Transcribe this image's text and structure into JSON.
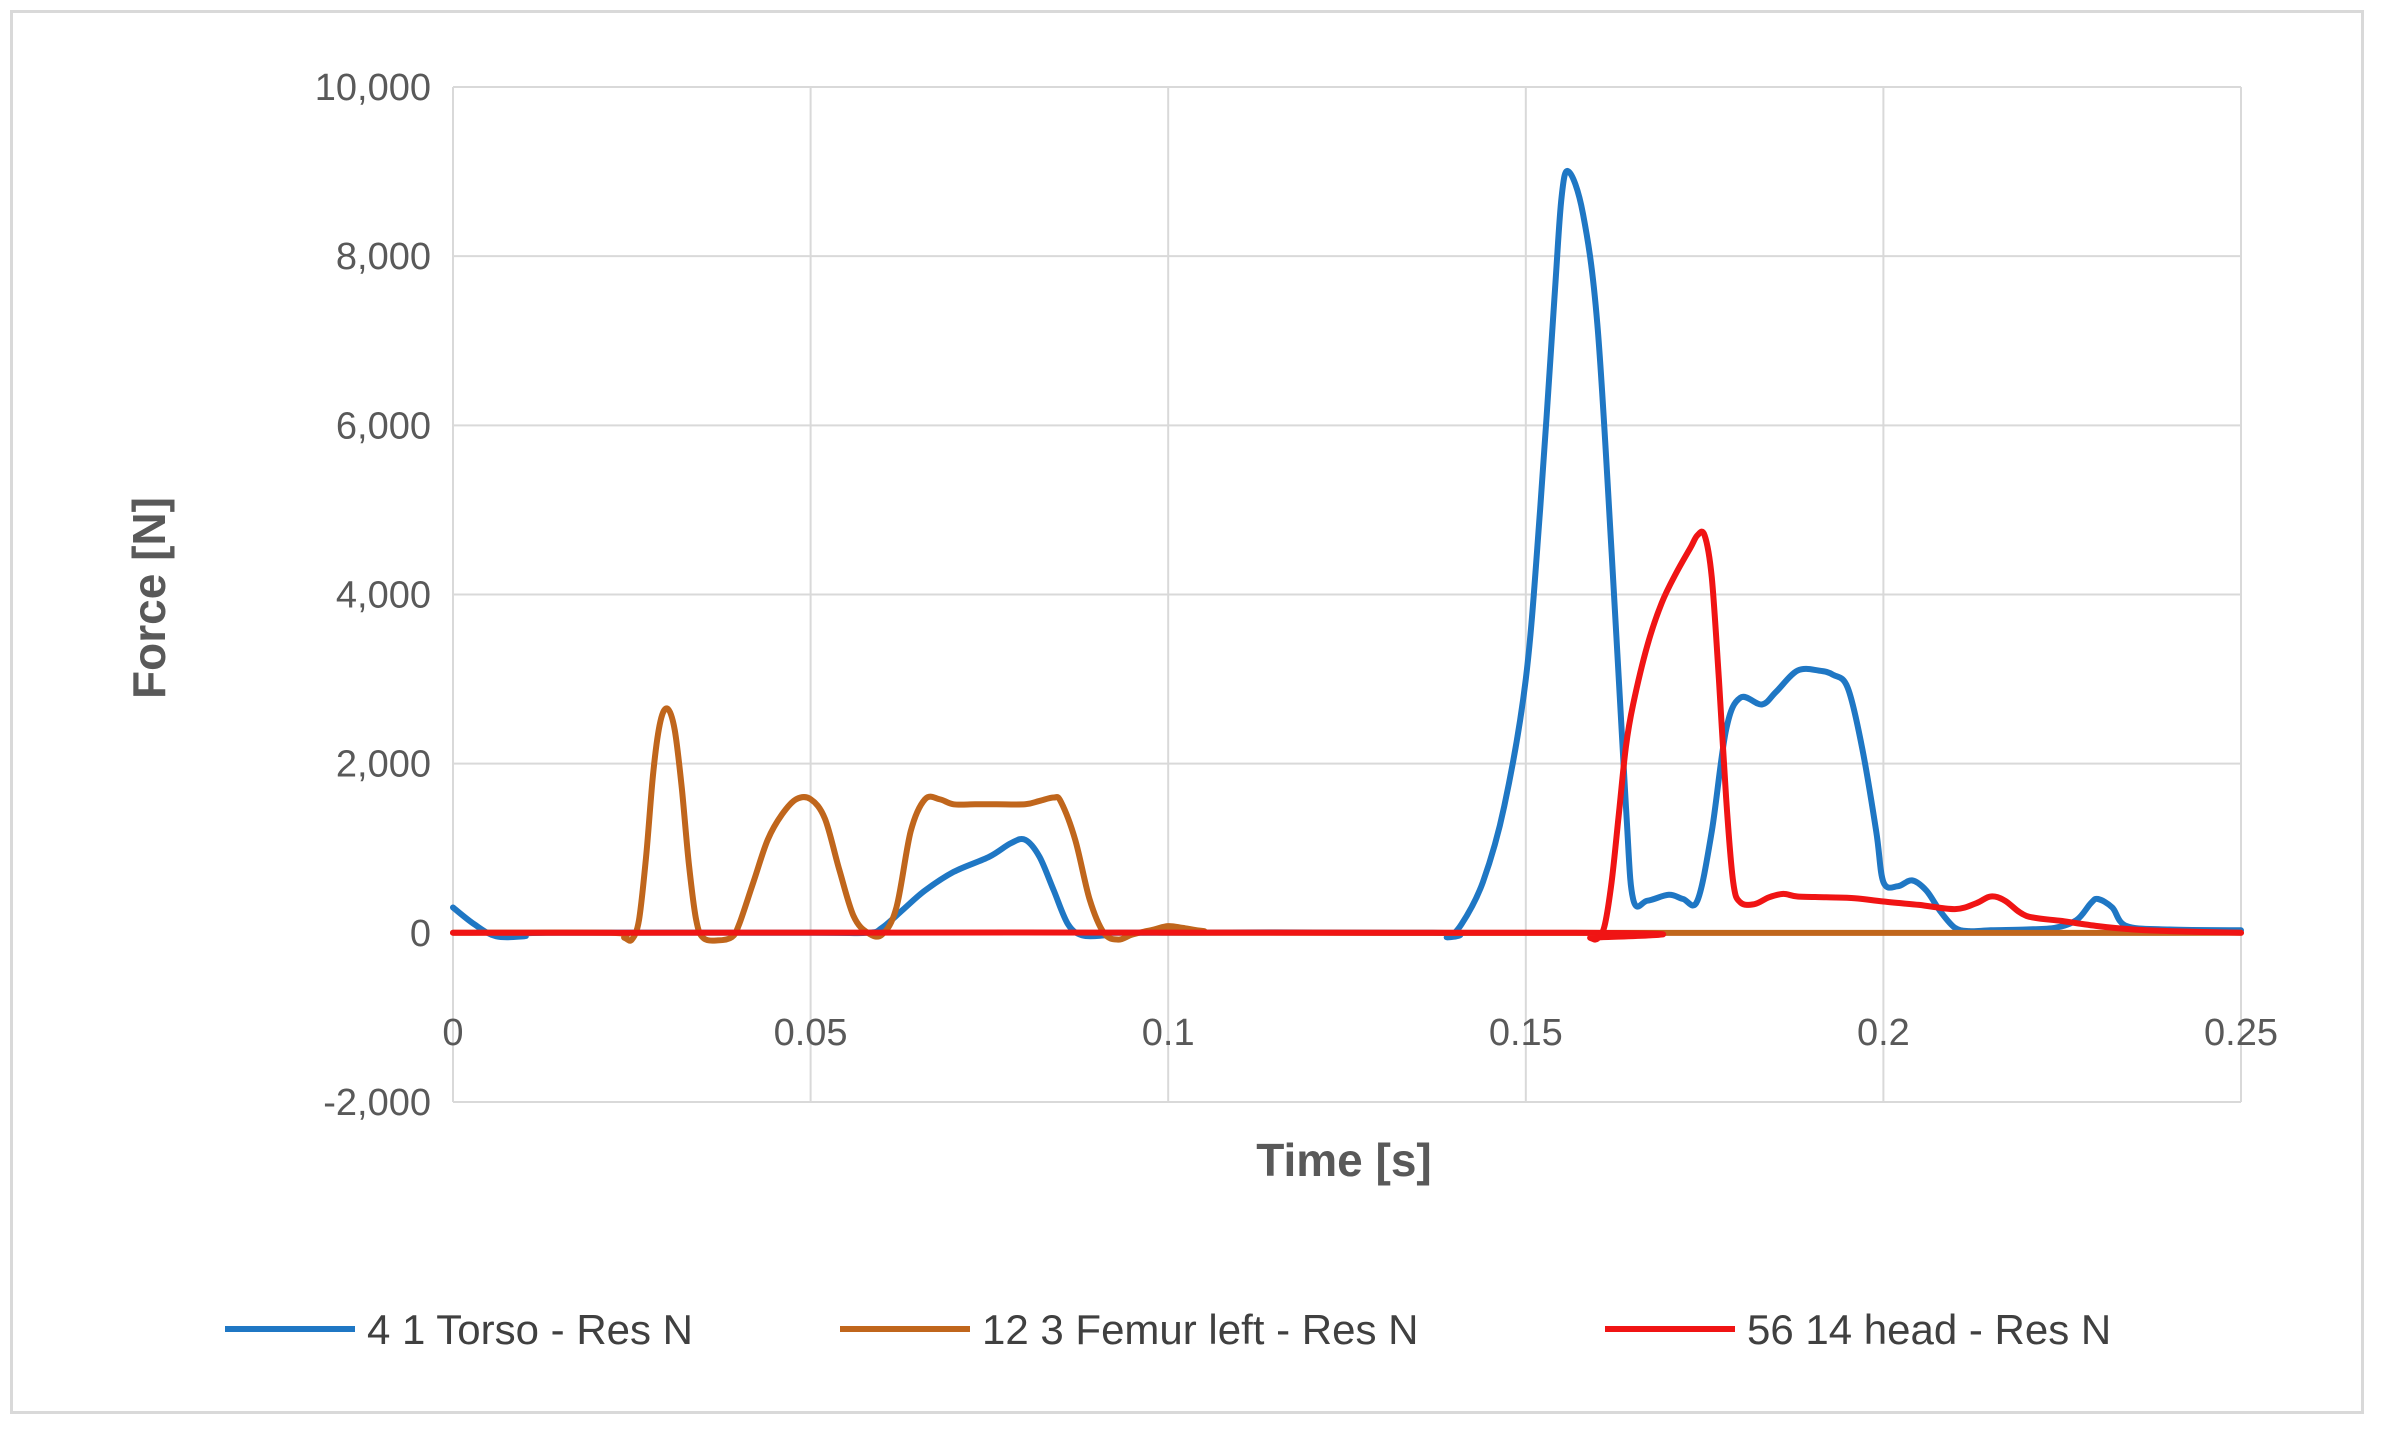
{
  "chart_data": {
    "type": "line",
    "title": "",
    "xlabel": "Time [s]",
    "ylabel": "Force [N]",
    "xlim": [
      0,
      0.25
    ],
    "ylim": [
      -2000,
      10000
    ],
    "x_ticks": [
      {
        "value": 0,
        "label": "0"
      },
      {
        "value": 0.05,
        "label": "0.05"
      },
      {
        "value": 0.1,
        "label": "0.1"
      },
      {
        "value": 0.15,
        "label": "0.15"
      },
      {
        "value": 0.2,
        "label": "0.2"
      },
      {
        "value": 0.25,
        "label": "0.25"
      }
    ],
    "y_ticks": [
      {
        "value": -2000,
        "label": "-2,000"
      },
      {
        "value": 0,
        "label": "0"
      },
      {
        "value": 2000,
        "label": "2,000"
      },
      {
        "value": 4000,
        "label": "4,000"
      },
      {
        "value": 6000,
        "label": "6,000"
      },
      {
        "value": 8000,
        "label": "8,000"
      },
      {
        "value": 10000,
        "label": "10,000"
      }
    ],
    "grid": true,
    "legend_position": "bottom",
    "series": [
      {
        "name": "4 1 Torso - Res N",
        "color": "#1f77c4",
        "points": [
          [
            0,
            300
          ],
          [
            0.003,
            100
          ],
          [
            0.006,
            -40
          ],
          [
            0.01,
            -40
          ],
          [
            0.013,
            0
          ],
          [
            0.05,
            0
          ],
          [
            0.058,
            0
          ],
          [
            0.06,
            60
          ],
          [
            0.063,
            280
          ],
          [
            0.066,
            500
          ],
          [
            0.07,
            720
          ],
          [
            0.075,
            900
          ],
          [
            0.078,
            1060
          ],
          [
            0.08,
            1100
          ],
          [
            0.082,
            900
          ],
          [
            0.084,
            500
          ],
          [
            0.086,
            100
          ],
          [
            0.088,
            -30
          ],
          [
            0.091,
            -30
          ],
          [
            0.093,
            0
          ],
          [
            0.137,
            0
          ],
          [
            0.139,
            -50
          ],
          [
            0.141,
            100
          ],
          [
            0.144,
            600
          ],
          [
            0.147,
            1500
          ],
          [
            0.15,
            3000
          ],
          [
            0.152,
            5000
          ],
          [
            0.154,
            7500
          ],
          [
            0.155,
            8700
          ],
          [
            0.156,
            9000
          ],
          [
            0.158,
            8500
          ],
          [
            0.16,
            7200
          ],
          [
            0.162,
            4500
          ],
          [
            0.164,
            1500
          ],
          [
            0.165,
            400
          ],
          [
            0.167,
            380
          ],
          [
            0.17,
            450
          ],
          [
            0.172,
            400
          ],
          [
            0.174,
            380
          ],
          [
            0.176,
            1200
          ],
          [
            0.178,
            2400
          ],
          [
            0.18,
            2780
          ],
          [
            0.183,
            2700
          ],
          [
            0.185,
            2850
          ],
          [
            0.188,
            3100
          ],
          [
            0.191,
            3100
          ],
          [
            0.193,
            3050
          ],
          [
            0.195,
            2900
          ],
          [
            0.197,
            2200
          ],
          [
            0.199,
            1200
          ],
          [
            0.2,
            600
          ],
          [
            0.202,
            550
          ],
          [
            0.204,
            620
          ],
          [
            0.206,
            500
          ],
          [
            0.208,
            250
          ],
          [
            0.21,
            60
          ],
          [
            0.212,
            20
          ],
          [
            0.215,
            30
          ],
          [
            0.22,
            40
          ],
          [
            0.224,
            60
          ],
          [
            0.227,
            150
          ],
          [
            0.229,
            350
          ],
          [
            0.23,
            400
          ],
          [
            0.232,
            300
          ],
          [
            0.234,
            80
          ],
          [
            0.24,
            40
          ],
          [
            0.25,
            30
          ]
        ]
      },
      {
        "name": "12 3 Femur left - Res N",
        "color": "#c0661c",
        "points": [
          [
            0,
            0
          ],
          [
            0.022,
            0
          ],
          [
            0.024,
            -60
          ],
          [
            0.025,
            -80
          ],
          [
            0.026,
            150
          ],
          [
            0.027,
            900
          ],
          [
            0.028,
            1900
          ],
          [
            0.029,
            2500
          ],
          [
            0.03,
            2650
          ],
          [
            0.031,
            2400
          ],
          [
            0.032,
            1700
          ],
          [
            0.033,
            800
          ],
          [
            0.034,
            150
          ],
          [
            0.035,
            -60
          ],
          [
            0.037,
            -90
          ],
          [
            0.039,
            -50
          ],
          [
            0.04,
            100
          ],
          [
            0.042,
            600
          ],
          [
            0.044,
            1100
          ],
          [
            0.046,
            1400
          ],
          [
            0.048,
            1580
          ],
          [
            0.05,
            1580
          ],
          [
            0.052,
            1350
          ],
          [
            0.054,
            750
          ],
          [
            0.056,
            200
          ],
          [
            0.058,
            0
          ],
          [
            0.06,
            -20
          ],
          [
            0.062,
            300
          ],
          [
            0.064,
            1200
          ],
          [
            0.066,
            1580
          ],
          [
            0.068,
            1580
          ],
          [
            0.07,
            1520
          ],
          [
            0.073,
            1520
          ],
          [
            0.076,
            1520
          ],
          [
            0.08,
            1520
          ],
          [
            0.082,
            1560
          ],
          [
            0.084,
            1600
          ],
          [
            0.085,
            1550
          ],
          [
            0.087,
            1100
          ],
          [
            0.089,
            400
          ],
          [
            0.091,
            0
          ],
          [
            0.093,
            -80
          ],
          [
            0.095,
            -20
          ],
          [
            0.098,
            40
          ],
          [
            0.1,
            80
          ],
          [
            0.102,
            60
          ],
          [
            0.105,
            20
          ],
          [
            0.11,
            0
          ],
          [
            0.25,
            0
          ]
        ]
      },
      {
        "name": "56 14 head - Res N",
        "color": "#f01414",
        "points": [
          [
            0,
            0
          ],
          [
            0.157,
            0
          ],
          [
            0.159,
            -60
          ],
          [
            0.16,
            -70
          ],
          [
            0.161,
            80
          ],
          [
            0.162,
            600
          ],
          [
            0.163,
            1400
          ],
          [
            0.164,
            2200
          ],
          [
            0.165,
            2700
          ],
          [
            0.167,
            3400
          ],
          [
            0.169,
            3900
          ],
          [
            0.171,
            4250
          ],
          [
            0.173,
            4550
          ],
          [
            0.174,
            4700
          ],
          [
            0.175,
            4700
          ],
          [
            0.176,
            4200
          ],
          [
            0.177,
            3000
          ],
          [
            0.178,
            1600
          ],
          [
            0.179,
            600
          ],
          [
            0.18,
            360
          ],
          [
            0.182,
            340
          ],
          [
            0.184,
            420
          ],
          [
            0.186,
            460
          ],
          [
            0.188,
            430
          ],
          [
            0.192,
            420
          ],
          [
            0.196,
            410
          ],
          [
            0.2,
            370
          ],
          [
            0.205,
            330
          ],
          [
            0.21,
            280
          ],
          [
            0.213,
            350
          ],
          [
            0.215,
            430
          ],
          [
            0.217,
            380
          ],
          [
            0.22,
            200
          ],
          [
            0.225,
            140
          ],
          [
            0.23,
            80
          ],
          [
            0.235,
            40
          ],
          [
            0.24,
            20
          ],
          [
            0.25,
            0
          ]
        ]
      }
    ]
  }
}
